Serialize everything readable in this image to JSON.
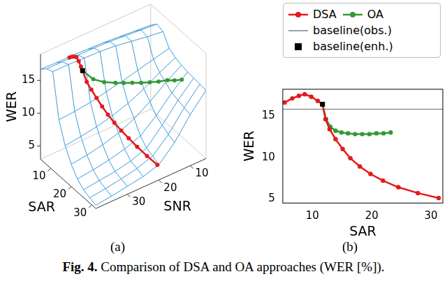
{
  "chart_data": [
    {
      "type": "surface3d",
      "panel": "(a)",
      "x_label": "SAR",
      "y_label": "SNR",
      "z_label": "WER",
      "xlim": [
        5,
        32
      ],
      "xticks": [
        10,
        20,
        30
      ],
      "ylim": [
        5,
        40
      ],
      "yticks": [
        10,
        20,
        30
      ],
      "zlim": [
        3,
        19
      ],
      "zticks": [
        5,
        10,
        15
      ],
      "surface": {
        "color": "#3a9ad9",
        "x": [
          5,
          8,
          11,
          14,
          17,
          20,
          23,
          26,
          29,
          32
        ],
        "y": [
          5,
          10,
          15,
          20,
          25,
          30,
          35,
          40
        ],
        "z": [
          [
            15.8,
            16.0,
            16.2,
            16.4,
            16.5,
            16.6,
            16.6,
            16.7
          ],
          [
            16.8,
            17.0,
            17.2,
            17.4,
            17.5,
            17.5,
            17.6,
            17.6
          ],
          [
            16.5,
            16.8,
            17.2,
            17.6,
            17.8,
            17.9,
            18.0,
            18.0
          ],
          [
            14.8,
            14.2,
            13.6,
            13.0,
            12.5,
            12.0,
            11.7,
            11.5
          ],
          [
            14.2,
            13.0,
            11.6,
            10.5,
            9.7,
            9.1,
            8.7,
            8.4
          ],
          [
            13.9,
            12.3,
            10.5,
            9.0,
            7.9,
            7.2,
            6.7,
            6.4
          ],
          [
            13.7,
            11.6,
            9.2,
            7.2,
            6.3,
            5.7,
            5.3,
            5.0
          ],
          [
            13.6,
            11.3,
            8.6,
            6.2,
            5.3,
            4.8,
            4.5,
            4.2
          ],
          [
            13.5,
            11.0,
            8.0,
            5.8,
            5.0,
            4.5,
            4.1,
            3.8
          ],
          [
            13.4,
            10.8,
            7.6,
            5.3,
            4.6,
            4.2,
            3.8,
            3.5
          ]
        ]
      },
      "series": [
        {
          "color": "#e41a1c",
          "marker": "circle",
          "x": [
            5.3,
            6.6,
            7.7,
            8.7,
            9.8,
            10.9,
            11.7,
            12.2,
            12.9,
            13.9,
            15.1,
            16.4,
            18.0,
            19.8,
            21.9,
            24.5,
            27.8,
            31.3
          ],
          "y": [
            31,
            31,
            31,
            31,
            31,
            31,
            31,
            30,
            29,
            28,
            27,
            26,
            25,
            24,
            23,
            22,
            21,
            20
          ],
          "z": [
            16.6,
            17.1,
            17.4,
            17.6,
            17.3,
            16.8,
            16.4,
            14.6,
            13.4,
            12.2,
            11.0,
            9.9,
            8.9,
            8.0,
            7.2,
            6.4,
            5.7,
            5.1
          ]
        },
        {
          "color": "#339933",
          "marker": "circle",
          "x": [
            11.7,
            12.3,
            13.0,
            13.9,
            14.9,
            16.0,
            17.2,
            18.4,
            19.6,
            20.8,
            22.0,
            23.2
          ],
          "y": [
            31,
            28,
            25,
            22,
            20,
            18,
            16,
            14,
            12,
            10,
            8.5,
            7
          ],
          "z": [
            16.4,
            14.6,
            13.7,
            13.2,
            13.0,
            12.9,
            12.8,
            12.8,
            12.8,
            12.9,
            12.9,
            13.0
          ]
        },
        {
          "color": "#000000",
          "marker": "square",
          "x": [
            11.7
          ],
          "y": [
            31
          ],
          "z": [
            16.4
          ]
        }
      ]
    },
    {
      "type": "line",
      "panel": "(b)",
      "x_label": "SAR",
      "y_label": "WER",
      "xlim": [
        5,
        32
      ],
      "xticks": [
        10,
        20,
        30
      ],
      "ylim": [
        4.5,
        18.2
      ],
      "yticks": [
        5,
        10,
        15
      ],
      "grid": false,
      "legend": "top",
      "series": [
        {
          "name": "DSA",
          "color": "#e41a1c",
          "marker": "circle",
          "x": [
            5.3,
            6.6,
            7.7,
            8.7,
            9.8,
            10.9,
            11.7,
            12.2,
            12.9,
            13.9,
            15.1,
            16.4,
            18.0,
            19.8,
            21.9,
            24.5,
            27.8,
            31.3
          ],
          "values": [
            16.6,
            17.1,
            17.4,
            17.6,
            17.3,
            16.8,
            16.4,
            14.6,
            13.4,
            12.2,
            11.0,
            9.9,
            8.9,
            8.0,
            7.2,
            6.4,
            5.7,
            5.1
          ]
        },
        {
          "name": "OA",
          "color": "#339933",
          "marker": "circle",
          "x": [
            11.7,
            12.3,
            13.0,
            13.9,
            14.9,
            16.0,
            17.2,
            18.4,
            19.6,
            20.8,
            22.0,
            23.2
          ],
          "values": [
            16.4,
            14.6,
            13.7,
            13.2,
            13.0,
            12.9,
            12.8,
            12.8,
            12.8,
            12.9,
            12.9,
            13.0
          ]
        },
        {
          "name": "baseline(obs.)",
          "color": "#808080",
          "type": "hline",
          "values": [
            15.8
          ]
        },
        {
          "name": "baseline(enh.)",
          "color": "#000000",
          "marker": "square",
          "type": "scatter",
          "x": [
            11.7
          ],
          "values": [
            16.4
          ]
        }
      ]
    }
  ],
  "caption": {
    "label": "Fig. 4.",
    "text": "Comparison of DSA and OA approaches (WER [%])."
  }
}
